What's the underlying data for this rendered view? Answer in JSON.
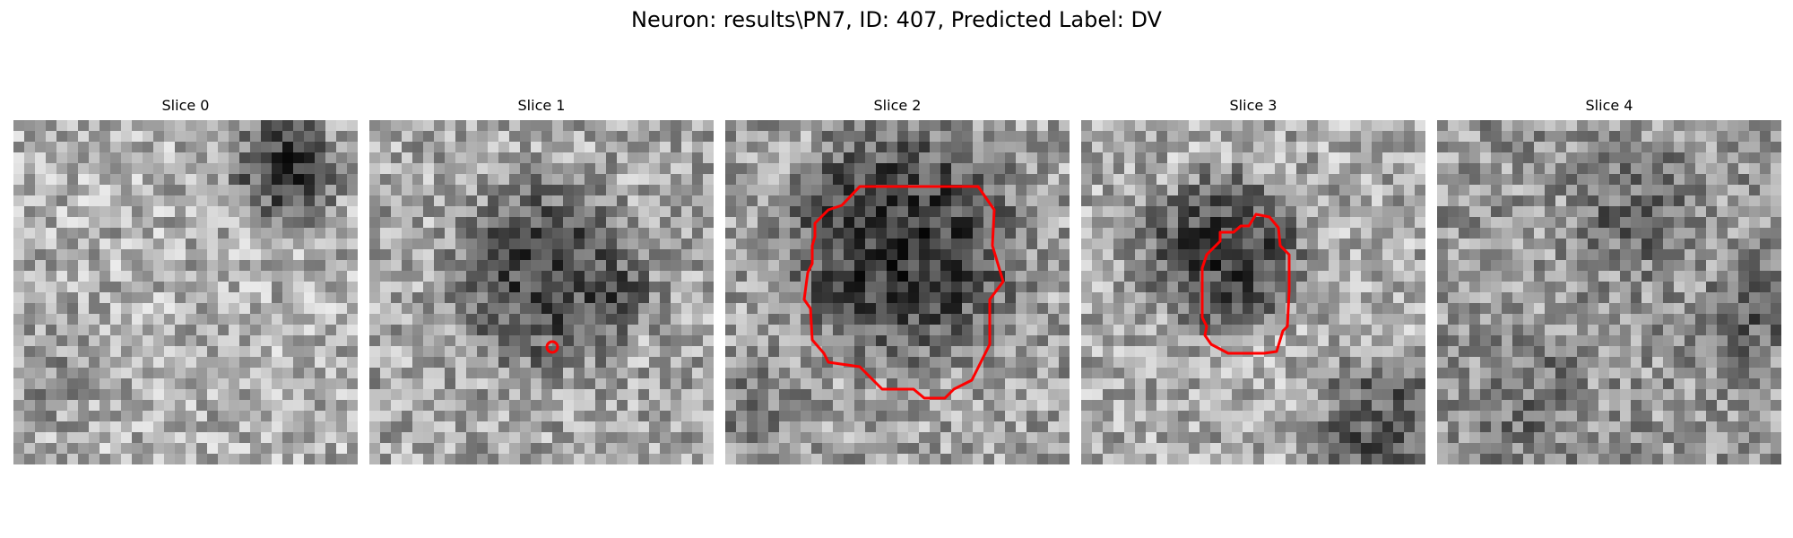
{
  "figure": {
    "title": "Neuron: results\\PN7, ID: 407, Predicted Label: DV"
  },
  "colors": {
    "contour": "#ff0000",
    "background": "#ffffff"
  },
  "panels": [
    {
      "title": "Slice 0",
      "contour": "none"
    },
    {
      "title": "Slice 1",
      "contour": "small-circle"
    },
    {
      "title": "Slice 2",
      "contour": "large-polygon"
    },
    {
      "title": "Slice 3",
      "contour": "medium-polygon"
    },
    {
      "title": "Slice 4",
      "contour": "none"
    }
  ]
}
